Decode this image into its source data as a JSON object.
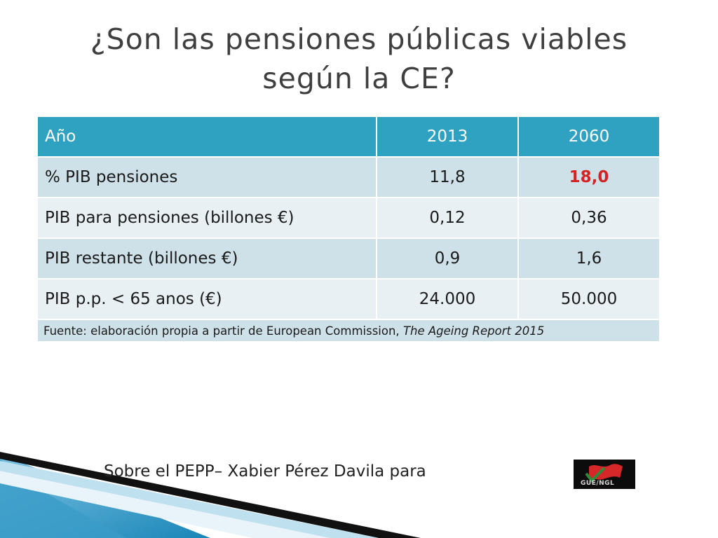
{
  "title": {
    "line1": "¿Son las pensiones públicas viables",
    "line2": "según la CE?"
  },
  "table": {
    "headers": [
      "Año",
      "2013",
      "2060"
    ],
    "rows": [
      {
        "label": "% PIB pensiones",
        "v2013": "11,8",
        "v2060": "18,0"
      },
      {
        "label": "PIB para pensiones (billones €)",
        "v2013": "0,12",
        "v2060": "0,36"
      },
      {
        "label": "PIB restante (billones €)",
        "v2013": "0,9",
        "v2060": "1,6"
      },
      {
        "label": "PIB p.p. < 65 anos (€)",
        "v2013": "24.000",
        "v2060": "50.000"
      }
    ],
    "source_prefix": "Fuente: elaboración propia a partir de European Commission, ",
    "source_title": "The Ageing Report 2015"
  },
  "footer": {
    "text": "Sobre el PEPP– Xabier Pérez Davila para"
  },
  "logo": {
    "label": "GUE/NGL",
    "colors": {
      "flag": "#d62828",
      "check": "#2e8b3a",
      "background": "#0c0c0c"
    }
  },
  "colors": {
    "header_bg": "#2fa1c1",
    "row_odd": "#cfe1e8",
    "row_even": "#e8f0f4",
    "highlight": "#d42323",
    "deco_blue": "#1a86b8",
    "deco_dark": "#111111"
  }
}
